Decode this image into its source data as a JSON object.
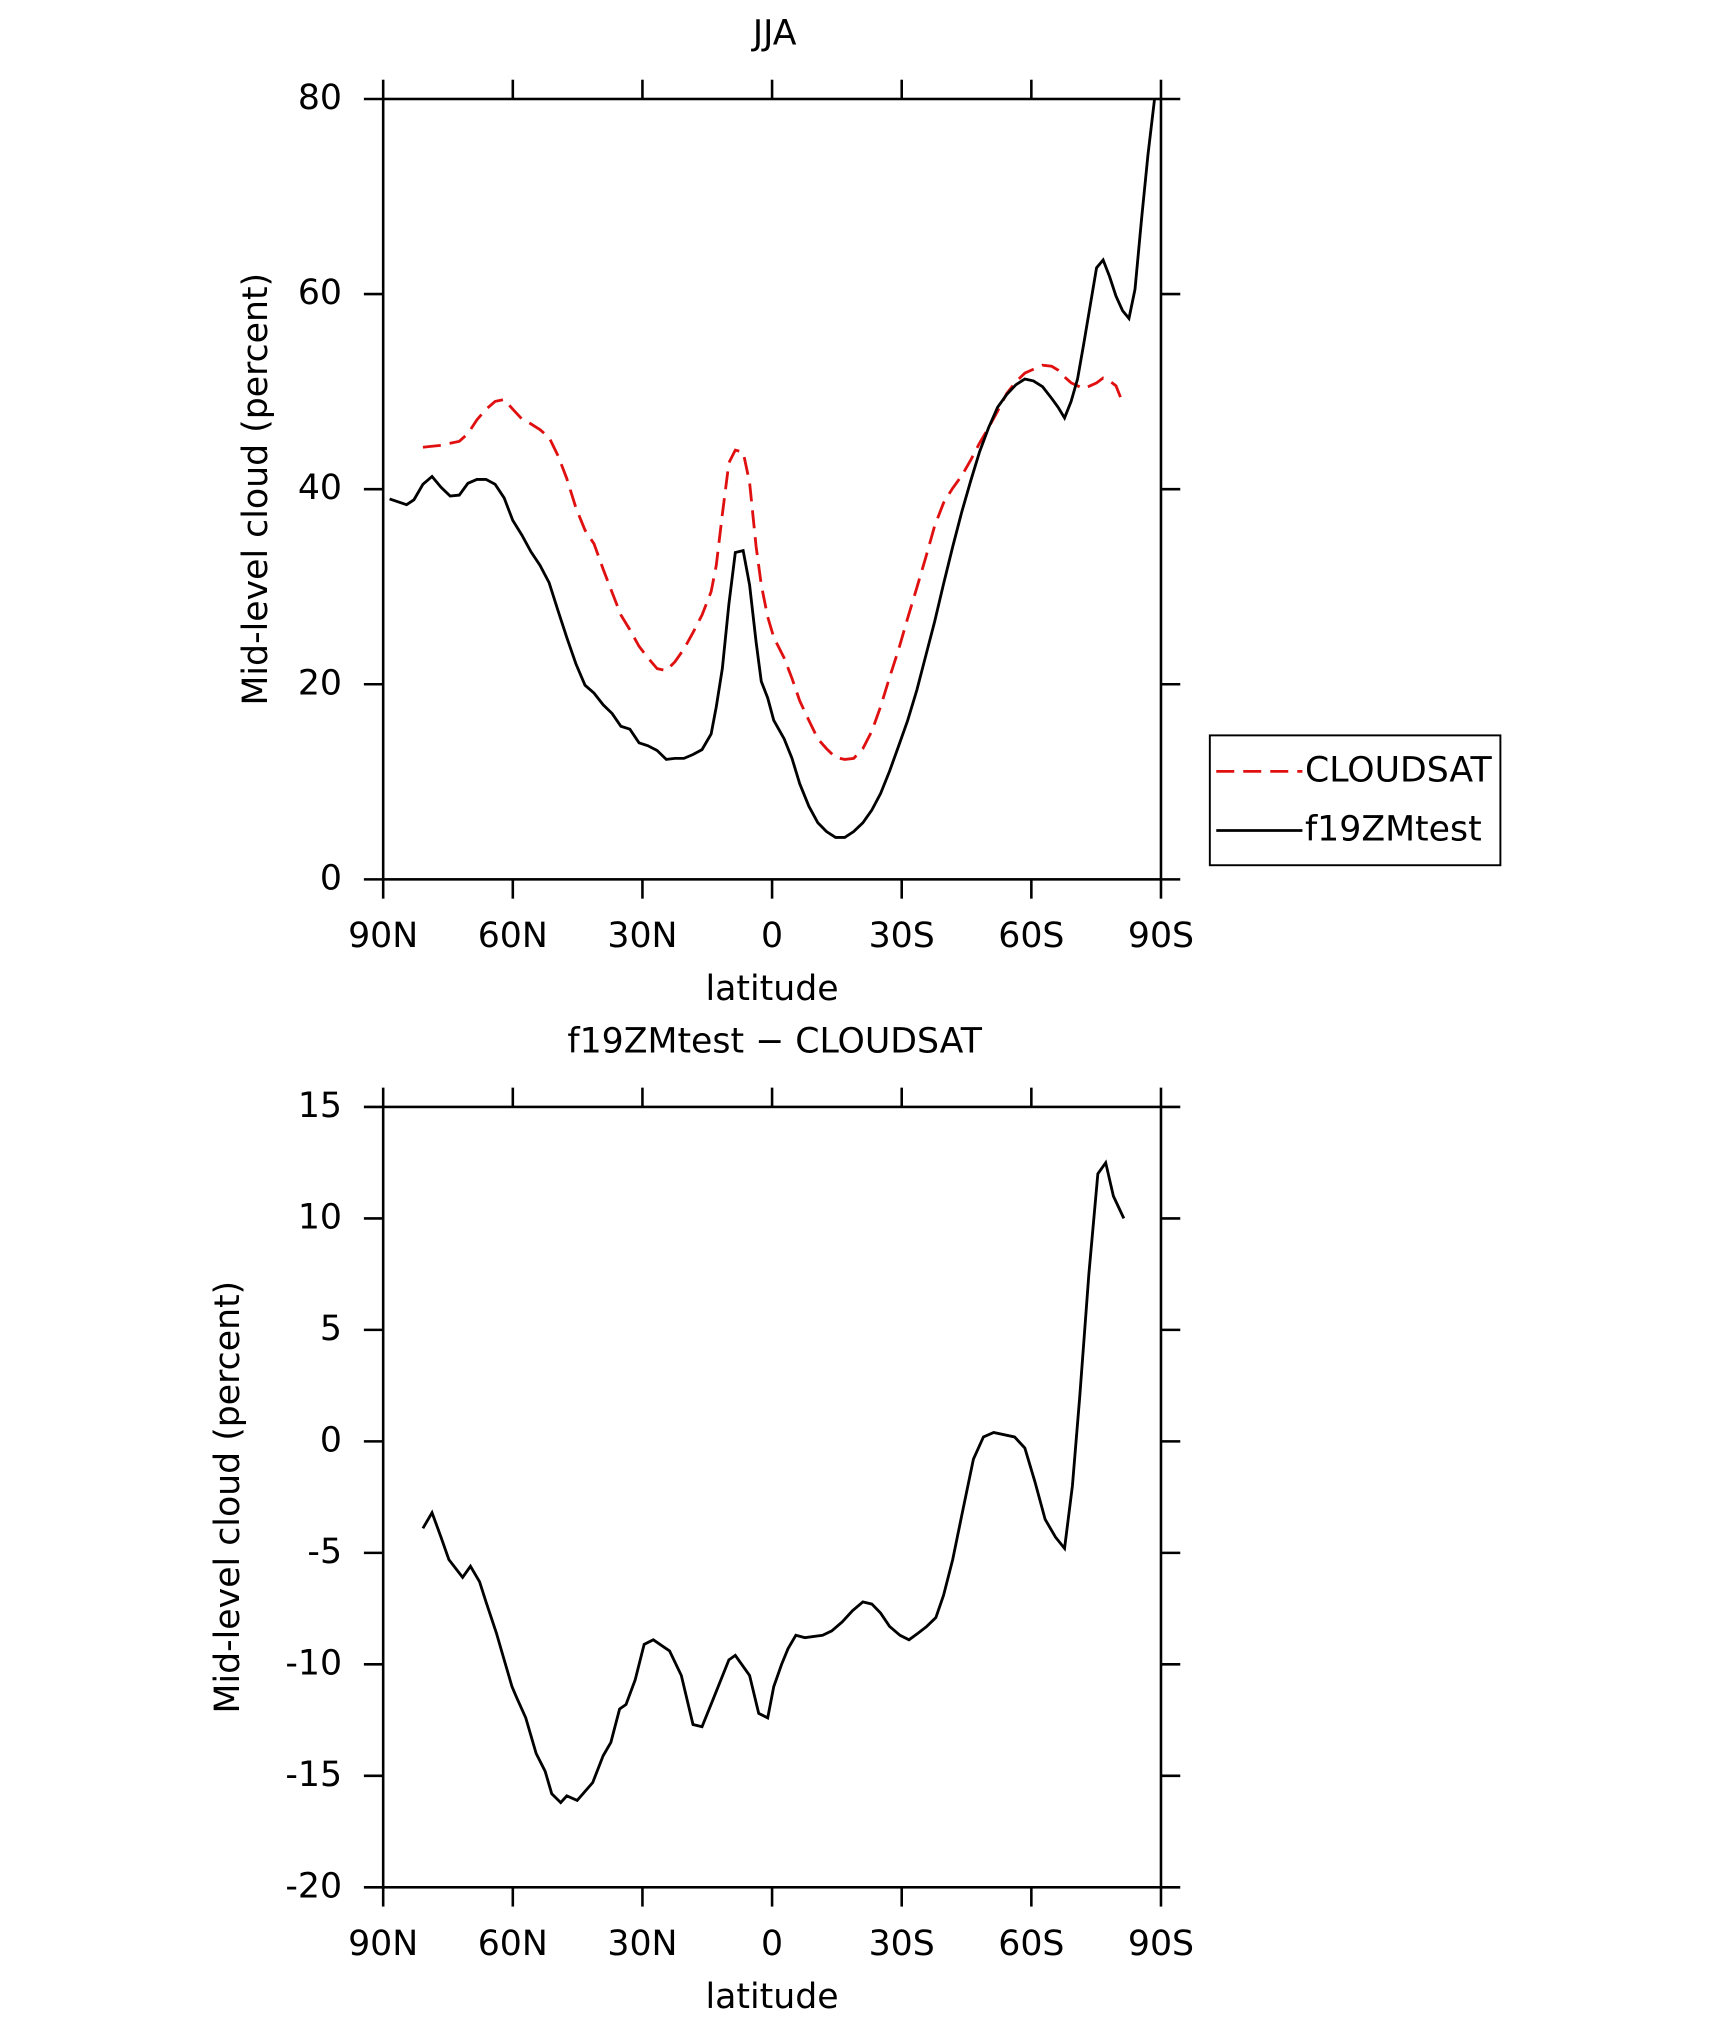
{
  "chart_data": [
    {
      "type": "line",
      "title": "JJA",
      "xlabel": "latitude",
      "ylabel": "Mid-level cloud (percent)",
      "x": [
        88.5,
        84.6,
        82.9,
        80.8,
        78.7,
        76.6,
        74.5,
        72.4,
        70.4,
        68.3,
        66.2,
        64.1,
        62.0,
        60.0,
        57.9,
        55.8,
        53.7,
        51.6,
        49.5,
        47.5,
        45.4,
        43.3,
        41.2,
        39.1,
        37.0,
        35.0,
        32.9,
        30.8,
        28.7,
        26.6,
        24.5,
        22.5,
        20.4,
        18.3,
        16.2,
        14.1,
        12.9,
        11.5,
        10.0,
        8.5,
        6.7,
        5.2,
        3.7,
        2.5,
        1.0,
        -0.4,
        -2.8,
        -4.6,
        -6.4,
        -8.5,
        -10.6,
        -12.6,
        -14.7,
        -16.8,
        -18.9,
        -21.0,
        -23.1,
        -25.1,
        -27.2,
        -29.3,
        -31.4,
        -33.5,
        -35.5,
        -37.6,
        -39.7,
        -41.8,
        -43.9,
        -46.0,
        -48.0,
        -50.1,
        -52.2,
        -54.3,
        -56.4,
        -58.5,
        -60.5,
        -62.6,
        -64.7,
        -66.2,
        -67.7,
        -69.2,
        -70.7,
        -72.1,
        -73.6,
        -75.1,
        -76.6,
        -78.1,
        -79.6,
        -81.1,
        -82.6,
        -84.0,
        -85.5,
        -87.0,
        -88.5
      ],
      "series": [
        {
          "name": "CLOUDSAT",
          "color": "#e01010",
          "dashed": true,
          "values": [
            null,
            null,
            null,
            44.3,
            44.4,
            44.5,
            44.7,
            44.9,
            45.7,
            47.1,
            48.2,
            49.0,
            49.2,
            48.2,
            47.2,
            46.7,
            46.1,
            45.3,
            43.4,
            41.1,
            38.1,
            35.8,
            34.4,
            31.8,
            29.4,
            27.1,
            25.6,
            23.9,
            22.7,
            21.6,
            21.4,
            22.3,
            23.6,
            25.3,
            27.1,
            29.5,
            32.2,
            37.4,
            42.7,
            44.0,
            43.8,
            40.7,
            34.1,
            30.2,
            26.9,
            24.8,
            22.7,
            20.6,
            18.3,
            16.3,
            14.4,
            13.4,
            12.5,
            12.3,
            12.4,
            13.4,
            15.2,
            17.7,
            20.7,
            23.6,
            26.8,
            29.9,
            32.9,
            36.2,
            38.6,
            40.1,
            41.4,
            43.0,
            44.7,
            46.3,
            48.0,
            49.8,
            51.0,
            51.9,
            52.3,
            52.7,
            52.6,
            52.2,
            51.5,
            50.9,
            50.6,
            50.3,
            50.6,
            50.9,
            51.4,
            51.1,
            50.6,
            48.9,
            null,
            null,
            null,
            null,
            null
          ]
        },
        {
          "name": "f19ZMtest",
          "color": "#000000",
          "dashed": false,
          "values": [
            39.0,
            38.4,
            38.9,
            40.5,
            41.3,
            40.2,
            39.3,
            39.4,
            40.6,
            41.0,
            41.0,
            40.5,
            39.1,
            36.8,
            35.3,
            33.6,
            32.2,
            30.4,
            27.5,
            24.8,
            22.1,
            19.9,
            19.1,
            17.9,
            17.0,
            15.7,
            15.4,
            14.0,
            13.7,
            13.2,
            12.3,
            12.4,
            12.4,
            12.8,
            13.3,
            14.9,
            17.7,
            21.6,
            28.2,
            33.5,
            33.7,
            30.2,
            24.3,
            20.3,
            18.6,
            16.3,
            14.4,
            12.4,
            9.8,
            7.5,
            5.8,
            4.9,
            4.3,
            4.3,
            4.9,
            5.8,
            7.1,
            8.8,
            11.1,
            13.7,
            16.3,
            19.4,
            22.8,
            26.4,
            30.3,
            34.1,
            37.7,
            40.9,
            43.8,
            46.3,
            48.4,
            49.7,
            50.7,
            51.3,
            51.1,
            50.5,
            49.3,
            48.4,
            47.3,
            49.0,
            51.3,
            54.8,
            58.8,
            62.7,
            63.5,
            61.8,
            59.8,
            58.3,
            57.5,
            60.5,
            67.7,
            74.3,
            80.0
          ]
        }
      ],
      "xlim": [
        90,
        -90
      ],
      "xticks": [
        {
          "value": 90,
          "label": "90N"
        },
        {
          "value": 60,
          "label": "60N"
        },
        {
          "value": 30,
          "label": "30N"
        },
        0,
        {
          "value": -30,
          "label": "30S"
        },
        {
          "value": -60,
          "label": "60S"
        },
        {
          "value": -90,
          "label": "90S"
        }
      ],
      "ylim": [
        0,
        80
      ],
      "yticks": [
        0,
        20,
        40,
        60,
        80
      ],
      "legend": "right"
    },
    {
      "type": "line",
      "title": "f19ZMtest − CLOUDSAT",
      "xlabel": "latitude",
      "ylabel": "Mid-level cloud (percent)",
      "x": [
        80.8,
        78.7,
        76.6,
        74.8,
        71.6,
        69.8,
        67.7,
        66.2,
        63.8,
        62.3,
        60.2,
        59.1,
        57.0,
        54.6,
        52.5,
        51.0,
        48.9,
        47.5,
        45.1,
        41.5,
        39.1,
        37.3,
        35.3,
        33.8,
        31.7,
        29.6,
        27.5,
        23.7,
        21.0,
        18.3,
        16.2,
        13.5,
        10.0,
        8.5,
        5.2,
        3.1,
        1.0,
        -0.4,
        -2.2,
        -3.7,
        -5.5,
        -7.6,
        -11.7,
        -13.8,
        -16.2,
        -18.6,
        -21.0,
        -23.1,
        -25.1,
        -27.2,
        -29.6,
        -31.7,
        -33.8,
        -35.8,
        -37.9,
        -39.7,
        -41.8,
        -43.9,
        -46.6,
        -48.9,
        -51.3,
        -56.1,
        -58.5,
        -60.8,
        -63.2,
        -65.6,
        -67.7,
        -69.5,
        -71.2,
        -73.3,
        -75.4,
        -77.2,
        -79.0,
        -81.4
      ],
      "series": [
        {
          "color": "#000000",
          "dashed": false,
          "values": [
            -3.9,
            -3.2,
            -4.3,
            -5.3,
            -6.1,
            -5.6,
            -6.3,
            -7.2,
            -8.6,
            -9.6,
            -11.0,
            -11.5,
            -12.4,
            -14.0,
            -14.8,
            -15.8,
            -16.2,
            -15.9,
            -16.1,
            -15.3,
            -14.1,
            -13.5,
            -12.0,
            -11.8,
            -10.7,
            -9.1,
            -8.9,
            -9.4,
            -10.5,
            -12.7,
            -12.8,
            -11.5,
            -9.8,
            -9.6,
            -10.5,
            -12.2,
            -12.4,
            -11.0,
            -10.0,
            -9.3,
            -8.7,
            -8.8,
            -8.7,
            -8.5,
            -8.1,
            -7.6,
            -7.2,
            -7.3,
            -7.7,
            -8.3,
            -8.7,
            -8.9,
            -8.6,
            -8.3,
            -7.9,
            -6.9,
            -5.3,
            -3.3,
            -0.8,
            0.2,
            0.4,
            0.2,
            -0.3,
            -1.8,
            -3.5,
            -4.3,
            -4.8,
            -2.0,
            2.0,
            7.5,
            12.0,
            12.5,
            11.0,
            10.0
          ]
        }
      ],
      "xlim": [
        90,
        -90
      ],
      "xticks": [
        {
          "value": 90,
          "label": "90N"
        },
        {
          "value": 60,
          "label": "60N"
        },
        {
          "value": 30,
          "label": "30N"
        },
        0,
        {
          "value": -30,
          "label": "30S"
        },
        {
          "value": -60,
          "label": "60S"
        },
        {
          "value": -90,
          "label": "90S"
        }
      ],
      "ylim": [
        -20,
        15
      ],
      "yticks": [
        -20,
        -15,
        -10,
        -5,
        0,
        5,
        10,
        15
      ]
    }
  ]
}
